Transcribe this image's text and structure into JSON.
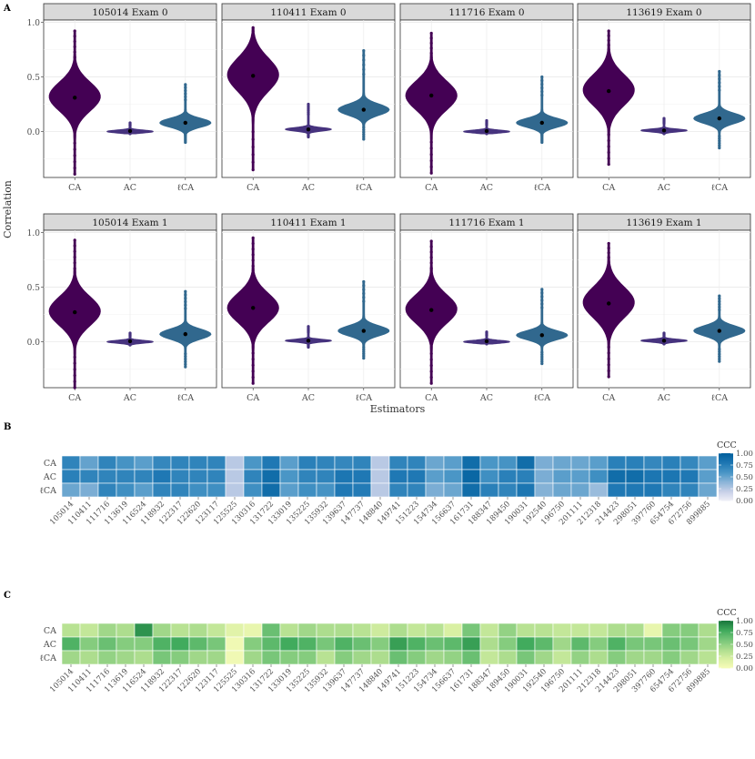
{
  "panel_labels": {
    "a": "A",
    "b": "B",
    "c": "C"
  },
  "colors": {
    "CA": "#440154",
    "AC": "#46337e",
    "lCA": "#31688e",
    "strip_bg": "#d9d9d9",
    "blues": [
      "#f0f0f8",
      "#c8d0e8",
      "#8bb5d8",
      "#4a96c6",
      "#1f78b4",
      "#03619e"
    ],
    "greens": [
      "#f7fcb9",
      "#d9f0a3",
      "#addd8e",
      "#78c679",
      "#41ab5d",
      "#1b7a3e"
    ]
  },
  "chart_data": [
    {
      "type": "violin",
      "panel": "A",
      "xlabel": "Estimators",
      "ylabel": "Correlation",
      "y_ticks": [
        "1.0",
        "0.5",
        "0.0"
      ],
      "y_tick_values": [
        1.0,
        0.5,
        0.0
      ],
      "ylim": [
        -0.42,
        1.02
      ],
      "categories": [
        "CA",
        "AC",
        "ℓCA"
      ],
      "facets": [
        {
          "title": "105014 Exam 0",
          "series": [
            {
              "name": "CA",
              "mean": 0.31,
              "min": -0.39,
              "max": 0.92,
              "mode": 0.32,
              "spread": 0.13
            },
            {
              "name": "AC",
              "mean": 0.005,
              "min": -0.02,
              "max": 0.08,
              "mode": 0.0,
              "spread": 0.012
            },
            {
              "name": "ℓCA",
              "mean": 0.08,
              "min": -0.1,
              "max": 0.43,
              "mode": 0.08,
              "spread": 0.04
            }
          ]
        },
        {
          "title": "110411 Exam 0",
          "series": [
            {
              "name": "CA",
              "mean": 0.51,
              "min": -0.35,
              "max": 0.95,
              "mode": 0.52,
              "spread": 0.15
            },
            {
              "name": "AC",
              "mean": 0.02,
              "min": -0.05,
              "max": 0.25,
              "mode": 0.02,
              "spread": 0.015
            },
            {
              "name": "ℓCA",
              "mean": 0.2,
              "min": -0.07,
              "max": 0.74,
              "mode": 0.2,
              "spread": 0.05
            }
          ]
        },
        {
          "title": "111716 Exam 0",
          "series": [
            {
              "name": "CA",
              "mean": 0.33,
              "min": -0.38,
              "max": 0.9,
              "mode": 0.33,
              "spread": 0.13
            },
            {
              "name": "AC",
              "mean": 0.005,
              "min": -0.02,
              "max": 0.1,
              "mode": 0.0,
              "spread": 0.012
            },
            {
              "name": "ℓCA",
              "mean": 0.08,
              "min": -0.1,
              "max": 0.5,
              "mode": 0.08,
              "spread": 0.04
            }
          ]
        },
        {
          "title": "113619 Exam 0",
          "series": [
            {
              "name": "CA",
              "mean": 0.37,
              "min": -0.3,
              "max": 0.92,
              "mode": 0.38,
              "spread": 0.14
            },
            {
              "name": "AC",
              "mean": 0.01,
              "min": -0.02,
              "max": 0.12,
              "mode": 0.01,
              "spread": 0.012
            },
            {
              "name": "ℓCA",
              "mean": 0.12,
              "min": -0.15,
              "max": 0.55,
              "mode": 0.12,
              "spread": 0.045
            }
          ]
        },
        {
          "title": "105014 Exam 1",
          "series": [
            {
              "name": "CA",
              "mean": 0.27,
              "min": -0.42,
              "max": 0.93,
              "mode": 0.28,
              "spread": 0.13
            },
            {
              "name": "AC",
              "mean": 0.005,
              "min": -0.03,
              "max": 0.08,
              "mode": 0.0,
              "spread": 0.012
            },
            {
              "name": "ℓCA",
              "mean": 0.07,
              "min": -0.23,
              "max": 0.46,
              "mode": 0.07,
              "spread": 0.045
            }
          ]
        },
        {
          "title": "110411 Exam 1",
          "series": [
            {
              "name": "CA",
              "mean": 0.31,
              "min": -0.38,
              "max": 0.95,
              "mode": 0.31,
              "spread": 0.13
            },
            {
              "name": "AC",
              "mean": 0.01,
              "min": -0.05,
              "max": 0.14,
              "mode": 0.01,
              "spread": 0.012
            },
            {
              "name": "ℓCA",
              "mean": 0.1,
              "min": -0.15,
              "max": 0.55,
              "mode": 0.1,
              "spread": 0.045
            }
          ]
        },
        {
          "title": "111716 Exam 1",
          "series": [
            {
              "name": "CA",
              "mean": 0.29,
              "min": -0.38,
              "max": 0.92,
              "mode": 0.3,
              "spread": 0.13
            },
            {
              "name": "AC",
              "mean": 0.005,
              "min": -0.02,
              "max": 0.09,
              "mode": 0.0,
              "spread": 0.012
            },
            {
              "name": "ℓCA",
              "mean": 0.06,
              "min": -0.2,
              "max": 0.48,
              "mode": 0.06,
              "spread": 0.04
            }
          ]
        },
        {
          "title": "113619 Exam 1",
          "series": [
            {
              "name": "CA",
              "mean": 0.35,
              "min": -0.32,
              "max": 0.9,
              "mode": 0.36,
              "spread": 0.14
            },
            {
              "name": "AC",
              "mean": 0.01,
              "min": -0.02,
              "max": 0.08,
              "mode": 0.01,
              "spread": 0.012
            },
            {
              "name": "ℓCA",
              "mean": 0.1,
              "min": -0.18,
              "max": 0.42,
              "mode": 0.1,
              "spread": 0.045
            }
          ]
        }
      ]
    },
    {
      "type": "heatmap",
      "panel": "B",
      "palette": "blues",
      "legend_title": "CCC",
      "legend_ticks": [
        "1.00",
        "0.75",
        "0.50",
        "0.25",
        "0.00"
      ],
      "legend_tick_values": [
        1.0,
        0.75,
        0.5,
        0.25,
        0.0
      ],
      "rows": [
        "CA",
        "AC",
        "ℓCA"
      ],
      "columns": [
        "105014",
        "110411",
        "111716",
        "113619",
        "116524",
        "118932",
        "122317",
        "122620",
        "123117",
        "125525",
        "130316",
        "131722",
        "133019",
        "135225",
        "135932",
        "139637",
        "147737",
        "148840",
        "149741",
        "151223",
        "154734",
        "156637",
        "161731",
        "188347",
        "189450",
        "190031",
        "192540",
        "196750",
        "201111",
        "212318",
        "214423",
        "298051",
        "397760",
        "654754",
        "672756",
        "899885"
      ],
      "values": [
        [
          0.72,
          0.52,
          0.72,
          0.62,
          0.55,
          0.7,
          0.72,
          0.72,
          0.72,
          0.25,
          0.6,
          0.8,
          0.55,
          0.75,
          0.72,
          0.7,
          0.72,
          0.25,
          0.72,
          0.72,
          0.5,
          0.55,
          0.9,
          0.6,
          0.62,
          0.9,
          0.45,
          0.5,
          0.5,
          0.55,
          0.75,
          0.75,
          0.7,
          0.75,
          0.7,
          0.55
        ],
        [
          0.75,
          0.72,
          0.72,
          0.72,
          0.72,
          0.8,
          0.72,
          0.72,
          0.72,
          0.25,
          0.72,
          0.9,
          0.6,
          0.72,
          0.72,
          0.82,
          0.8,
          0.25,
          0.8,
          0.8,
          0.55,
          0.6,
          0.95,
          0.65,
          0.75,
          0.75,
          0.45,
          0.55,
          0.55,
          0.65,
          0.9,
          0.9,
          0.82,
          0.82,
          0.8,
          0.55
        ],
        [
          0.5,
          0.45,
          0.72,
          0.65,
          0.55,
          0.72,
          0.72,
          0.65,
          0.65,
          0.25,
          0.65,
          0.9,
          0.55,
          0.65,
          0.62,
          0.8,
          0.78,
          0.25,
          0.72,
          0.72,
          0.45,
          0.5,
          0.9,
          0.75,
          0.72,
          0.82,
          0.42,
          0.5,
          0.5,
          0.35,
          0.8,
          0.8,
          0.8,
          0.72,
          0.72,
          0.5
        ]
      ]
    },
    {
      "type": "heatmap",
      "panel": "C",
      "palette": "greens",
      "legend_title": "CCC",
      "legend_ticks": [
        "1.00",
        "0.75",
        "0.50",
        "0.25",
        "0.00"
      ],
      "legend_tick_values": [
        1.0,
        0.75,
        0.5,
        0.25,
        0.0
      ],
      "rows": [
        "CA",
        "AC",
        "ℓCA"
      ],
      "columns": [
        "105014",
        "110411",
        "111716",
        "113619",
        "116524",
        "118932",
        "122317",
        "122620",
        "123117",
        "125525",
        "130316",
        "131722",
        "133019",
        "135225",
        "135932",
        "139637",
        "147737",
        "148840",
        "149741",
        "151223",
        "154734",
        "156637",
        "161731",
        "188347",
        "189450",
        "190031",
        "192540",
        "196750",
        "201111",
        "212318",
        "214423",
        "298051",
        "397760",
        "654754",
        "672756",
        "899885"
      ],
      "values": [
        [
          0.35,
          0.3,
          0.45,
          0.4,
          0.9,
          0.45,
          0.35,
          0.4,
          0.3,
          0.15,
          0.1,
          0.65,
          0.35,
          0.45,
          0.4,
          0.4,
          0.35,
          0.25,
          0.4,
          0.3,
          0.35,
          0.2,
          0.6,
          0.3,
          0.5,
          0.35,
          0.35,
          0.3,
          0.3,
          0.3,
          0.4,
          0.4,
          0.1,
          0.55,
          0.55,
          0.4
        ],
        [
          0.75,
          0.55,
          0.65,
          0.55,
          0.55,
          0.75,
          0.8,
          0.7,
          0.6,
          0.05,
          0.55,
          0.7,
          0.8,
          0.75,
          0.6,
          0.75,
          0.65,
          0.55,
          0.85,
          0.75,
          0.65,
          0.7,
          0.85,
          0.4,
          0.55,
          0.8,
          0.7,
          0.45,
          0.7,
          0.55,
          0.75,
          0.6,
          0.6,
          0.65,
          0.6,
          0.45
        ],
        [
          0.45,
          0.4,
          0.5,
          0.45,
          0.4,
          0.6,
          0.55,
          0.45,
          0.45,
          0.05,
          0.45,
          0.6,
          0.55,
          0.55,
          0.35,
          0.55,
          0.45,
          0.4,
          0.65,
          0.55,
          0.45,
          0.5,
          0.65,
          0.3,
          0.4,
          0.6,
          0.45,
          0.3,
          0.5,
          0.4,
          0.55,
          0.45,
          0.45,
          0.55,
          0.45,
          0.35
        ]
      ]
    }
  ]
}
